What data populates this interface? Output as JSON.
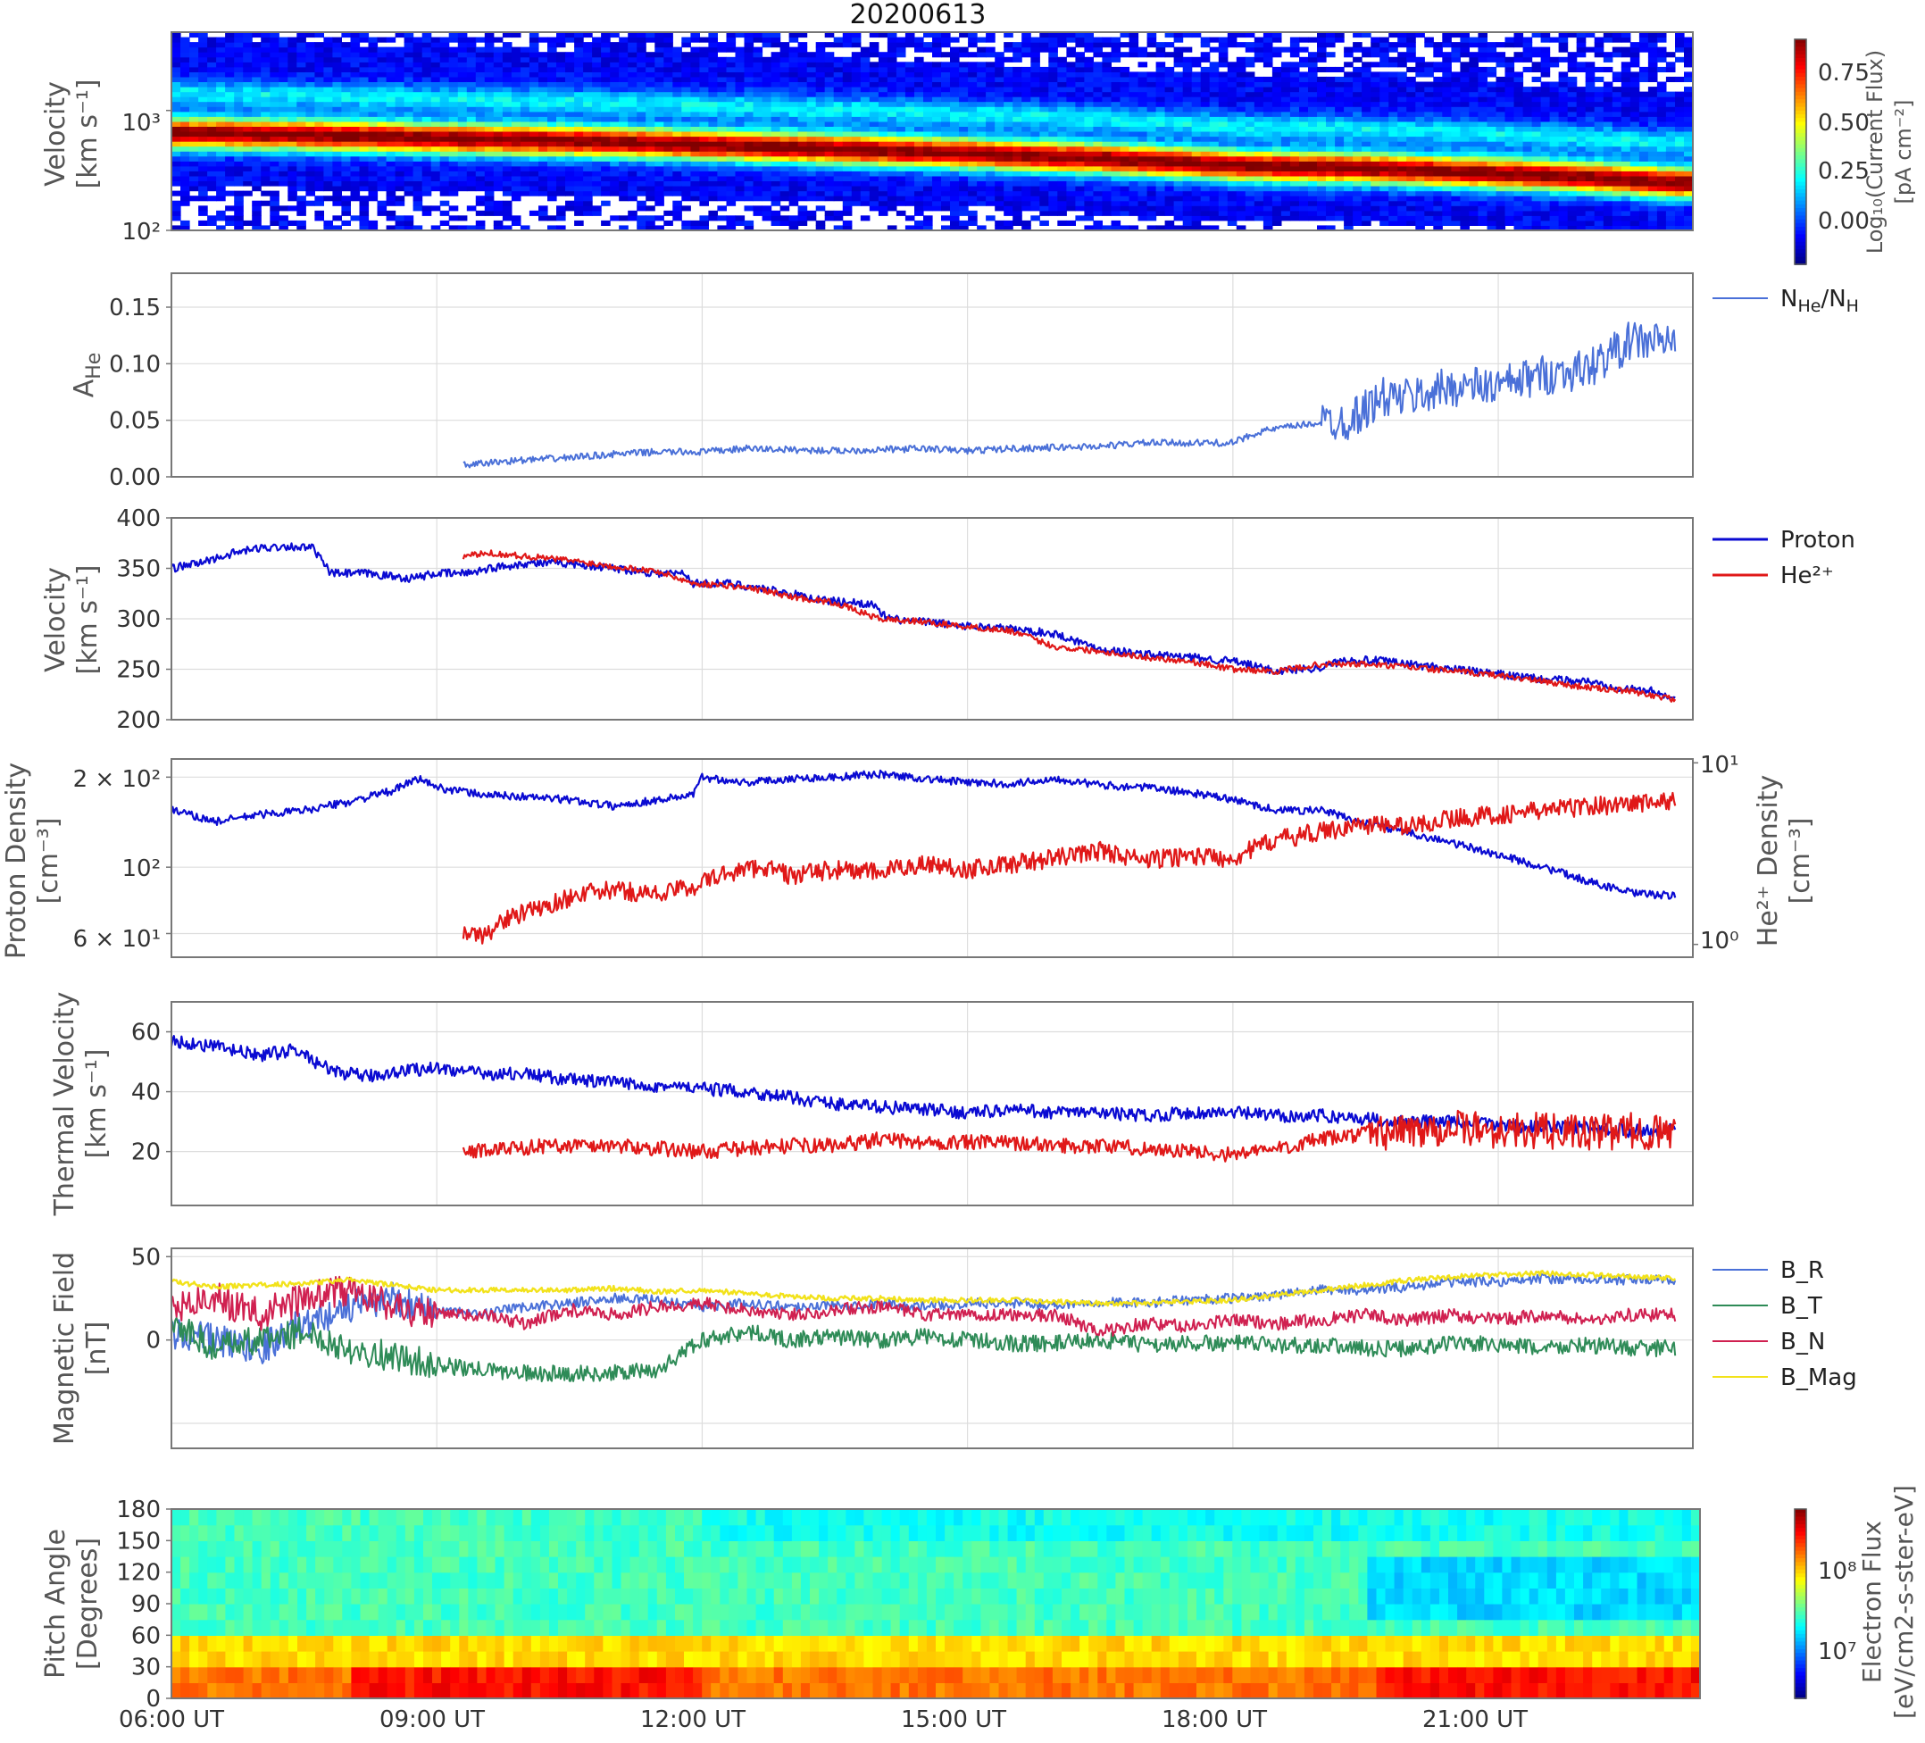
{
  "figure": {
    "title": "20200613",
    "x_tick_labels": [
      "06:00 UT",
      "09:00 UT",
      "12:00 UT",
      "15:00 UT",
      "18:00 UT",
      "21:00 UT"
    ]
  },
  "colors": {
    "proton": "#0a0ad2",
    "helium": "#e01818",
    "ahe": "#4a70d8",
    "b_r": "#4a70d8",
    "b_t": "#2e8b57",
    "b_n": "#d02050",
    "b_mag": "#f2e21a",
    "frame": "#777777",
    "grid": "#dddddd"
  },
  "chart_data": [
    {
      "type": "heatmap",
      "panel": "proton-spectrogram",
      "ylabel": "Velocity",
      "ylabel2": "[km s⁻¹]",
      "y_scale": "log",
      "ylim": [
        100,
        4500
      ],
      "y_tick_labels": [
        "10³",
        "10²"
      ],
      "colorbar": {
        "label": "Log₁₀(Current Flux)",
        "label2": "[pA cm⁻²]",
        "ticks": [
          "0.75",
          "0.50",
          "0.25",
          "0.00"
        ],
        "range": [
          -0.15,
          0.92
        ]
      },
      "peak_velocity": {
        "x_hours": [
          6,
          7.5,
          9,
          10.5,
          12,
          13.5,
          15,
          16.5,
          18,
          19.5,
          21,
          22,
          23
        ],
        "values": [
          650,
          630,
          590,
          560,
          520,
          480,
          440,
          400,
          350,
          330,
          300,
          280,
          250
        ]
      }
    },
    {
      "type": "line",
      "panel": "helium-abundance",
      "ylabel": "A",
      "ylabel_sub": "He",
      "ylim": [
        0,
        0.18
      ],
      "y_ticks": [
        0.0,
        0.05,
        0.1,
        0.15
      ],
      "y_tick_labels": [
        "0.00",
        "0.05",
        "0.10",
        "0.15"
      ],
      "series": [
        {
          "name": "N",
          "name_sub1": "He",
          "name_mid": "/N",
          "name_sub2": "H",
          "x_hours": [
            9.3,
            9.8,
            10.3,
            11,
            11.5,
            12,
            12.5,
            13,
            13.5,
            14,
            14.5,
            15,
            15.5,
            16,
            16.5,
            17,
            17.5,
            18,
            18.3,
            18.7,
            19,
            19.3,
            19.7,
            20,
            20.5,
            21,
            21.5,
            22,
            22.5,
            23
          ],
          "values": [
            0.01,
            0.014,
            0.016,
            0.02,
            0.022,
            0.022,
            0.025,
            0.024,
            0.023,
            0.024,
            0.025,
            0.023,
            0.025,
            0.026,
            0.027,
            0.03,
            0.03,
            0.03,
            0.04,
            0.045,
            0.048,
            0.05,
            0.07,
            0.07,
            0.08,
            0.08,
            0.09,
            0.095,
            0.12,
            0.12
          ]
        }
      ]
    },
    {
      "type": "line",
      "panel": "bulk-velocity",
      "ylabel": "Velocity",
      "ylabel2": "[km s⁻¹]",
      "ylim": [
        200,
        400
      ],
      "y_ticks": [
        200,
        250,
        300,
        350,
        400
      ],
      "series": [
        {
          "name": "Proton",
          "x_hours": [
            6,
            6.3,
            6.7,
            7,
            7.3,
            7.6,
            7.8,
            8.2,
            8.5,
            8.7,
            9,
            9.3,
            9.6,
            10,
            10.5,
            11,
            11.5,
            11.8,
            11.9,
            12.3,
            12.7,
            13,
            13.4,
            13.9,
            14.1,
            14.5,
            15,
            15.5,
            16,
            16.5,
            17,
            17.5,
            18,
            18.5,
            19,
            19.3,
            19.7,
            20,
            20.5,
            21,
            21.5,
            22,
            22.5,
            22.8,
            23
          ],
          "values": [
            350,
            355,
            365,
            370,
            372,
            370,
            345,
            345,
            342,
            340,
            345,
            345,
            350,
            355,
            355,
            350,
            345,
            345,
            335,
            335,
            330,
            325,
            318,
            315,
            300,
            297,
            293,
            290,
            285,
            270,
            265,
            262,
            258,
            248,
            252,
            260,
            258,
            255,
            250,
            245,
            240,
            238,
            230,
            228,
            220
          ]
        },
        {
          "name": "He²⁺",
          "x_hours": [
            9.3,
            9.6,
            10,
            10.5,
            11,
            11.5,
            11.9,
            12.3,
            12.7,
            13,
            13.5,
            14,
            14.5,
            15,
            15.5,
            16,
            16.5,
            17,
            17.5,
            18,
            18.5,
            19,
            19.5,
            20,
            20.5,
            21,
            21.5,
            22,
            22.5,
            23
          ],
          "values": [
            362,
            365,
            362,
            358,
            352,
            347,
            335,
            333,
            328,
            322,
            316,
            300,
            297,
            292,
            288,
            272,
            268,
            262,
            258,
            250,
            248,
            255,
            255,
            252,
            248,
            244,
            238,
            232,
            228,
            220
          ]
        }
      ]
    },
    {
      "type": "line",
      "panel": "density",
      "ylabel": "Proton Density",
      "ylabel2": "[cm⁻³]",
      "ylabel_right": "He²⁺ Density",
      "ylabel_right2": "[cm⁻³]",
      "y_scale": "log",
      "ylim": [
        50,
        230
      ],
      "y_tick_labels": [
        "2 × 10²",
        "10²",
        "6 × 10¹"
      ],
      "y2_scale": "log",
      "y2lim": [
        0.85,
        10.5
      ],
      "y2_tick_labels": [
        "10¹",
        "10⁰"
      ],
      "series": [
        {
          "name": "Proton",
          "axis": "left",
          "x_hours": [
            6,
            6.5,
            7,
            7.5,
            8,
            8.5,
            8.8,
            9,
            9.5,
            10,
            10.5,
            11,
            11.5,
            11.9,
            12,
            12.5,
            13,
            13.5,
            14,
            14.5,
            15,
            15.5,
            16,
            16.5,
            17,
            17.5,
            18,
            18.5,
            19,
            19.5,
            20,
            20.5,
            21,
            21.5,
            22,
            22.5,
            23
          ],
          "values": [
            155,
            142,
            150,
            155,
            165,
            180,
            198,
            185,
            175,
            172,
            168,
            160,
            168,
            175,
            200,
            192,
            198,
            200,
            205,
            198,
            192,
            190,
            198,
            188,
            185,
            178,
            168,
            155,
            155,
            140,
            130,
            120,
            110,
            100,
            90,
            82,
            80
          ]
        },
        {
          "name": "He²⁺",
          "axis": "right",
          "x_hours": [
            9.3,
            9.5,
            9.8,
            10.2,
            10.6,
            11,
            11.5,
            11.9,
            12.3,
            12.7,
            13,
            13.5,
            14,
            14.5,
            15,
            15.5,
            16,
            16.5,
            17,
            17.5,
            18,
            18.5,
            19,
            19.5,
            20,
            20.5,
            21,
            21.5,
            22,
            22.5,
            23
          ],
          "values": [
            1.2,
            1.1,
            1.4,
            1.6,
            1.9,
            2.0,
            1.9,
            2.1,
            2.5,
            2.7,
            2.4,
            2.6,
            2.5,
            2.8,
            2.6,
            2.8,
            3.0,
            3.3,
            2.9,
            3.1,
            3.0,
            3.8,
            4.2,
            4.6,
            4.5,
            5.0,
            5.2,
            5.5,
            5.8,
            6.0,
            6.2
          ]
        }
      ]
    },
    {
      "type": "line",
      "panel": "thermal-velocity",
      "ylabel": "Thermal Velocity",
      "ylabel2": "[km s⁻¹]",
      "ylim": [
        2,
        70
      ],
      "y_ticks": [
        20,
        40,
        60
      ],
      "series": [
        {
          "name": "Proton",
          "x_hours": [
            6,
            6.5,
            7,
            7.4,
            7.8,
            8.2,
            8.6,
            9,
            9.5,
            10,
            10.5,
            11,
            11.5,
            12,
            12.5,
            13,
            13.5,
            14,
            14.5,
            15,
            15.5,
            16,
            16.5,
            17,
            17.5,
            18,
            18.5,
            19,
            19.5,
            20,
            20.5,
            21,
            21.5,
            22,
            22.5,
            23
          ],
          "values": [
            57,
            55,
            52,
            54,
            47,
            45,
            47,
            48,
            46,
            46,
            44,
            43,
            42,
            41,
            40,
            38,
            36,
            35,
            34,
            33,
            34,
            33,
            33,
            32,
            33,
            33,
            32,
            32,
            31,
            30,
            30,
            29,
            28,
            28,
            27,
            27
          ]
        },
        {
          "name": "He²⁺",
          "x_hours": [
            9.3,
            9.8,
            10.3,
            11,
            11.5,
            12,
            12.5,
            13,
            13.5,
            14,
            14.5,
            15,
            15.5,
            16,
            16.5,
            17,
            17.5,
            18,
            18.5,
            19,
            19.5,
            20,
            20.5,
            21,
            21.5,
            22,
            22.5,
            23
          ],
          "values": [
            20,
            21,
            22,
            22,
            21,
            20,
            21,
            22,
            22,
            24,
            23,
            23,
            23,
            22,
            22,
            21,
            20,
            19,
            21,
            24,
            26,
            27,
            28,
            27,
            27,
            26,
            27,
            26
          ]
        }
      ]
    },
    {
      "type": "line",
      "panel": "magnetic-field",
      "ylabel": "Magnetic Field",
      "ylabel2": "[nT]",
      "ylim": [
        -65,
        55
      ],
      "y_ticks": [
        0,
        50
      ],
      "series": [
        {
          "name": "B_R",
          "x_hours": [
            6,
            6.5,
            7,
            7.5,
            8,
            8.5,
            9,
            9.5,
            10,
            10.5,
            11,
            11.5,
            12,
            12.5,
            13,
            13.5,
            14,
            14.5,
            15,
            15.5,
            16,
            16.5,
            17,
            17.5,
            18,
            18.5,
            19,
            19.5,
            20,
            20.5,
            21,
            21.5,
            22,
            22.5,
            23
          ],
          "values": [
            5,
            0,
            -5,
            10,
            20,
            25,
            18,
            15,
            20,
            22,
            25,
            24,
            20,
            22,
            20,
            21,
            22,
            20,
            22,
            22,
            21,
            23,
            22,
            24,
            25,
            27,
            30,
            30,
            32,
            35,
            35,
            37,
            36,
            36,
            36
          ]
        },
        {
          "name": "B_T",
          "x_hours": [
            6,
            6.5,
            7,
            7.5,
            8,
            8.5,
            9,
            9.5,
            10,
            10.5,
            11,
            11.5,
            12,
            12.5,
            13,
            13.5,
            14,
            14.5,
            15,
            15.5,
            16,
            16.5,
            17,
            17.5,
            18,
            18.5,
            19,
            19.5,
            20,
            20.5,
            21,
            21.5,
            22,
            22.5,
            23
          ],
          "values": [
            10,
            -5,
            0,
            5,
            -5,
            -10,
            -15,
            -18,
            -20,
            -20,
            -20,
            -18,
            0,
            5,
            0,
            2,
            0,
            2,
            0,
            -2,
            -2,
            0,
            -3,
            -2,
            -2,
            -3,
            -3,
            -5,
            -5,
            -2,
            -3,
            -5,
            -3,
            -5,
            -5
          ]
        },
        {
          "name": "B_N",
          "x_hours": [
            6,
            6.5,
            7,
            7.5,
            8,
            8.5,
            9,
            9.5,
            10,
            10.5,
            11,
            11.5,
            12,
            12.5,
            13,
            13.5,
            14,
            14.5,
            15,
            15.5,
            16,
            16.5,
            17,
            17.5,
            18,
            18.5,
            19,
            19.5,
            20,
            20.5,
            21,
            21.5,
            22,
            22.5,
            23
          ],
          "values": [
            20,
            25,
            15,
            25,
            30,
            20,
            15,
            15,
            10,
            18,
            15,
            20,
            22,
            18,
            15,
            18,
            20,
            15,
            15,
            15,
            15,
            5,
            10,
            8,
            12,
            10,
            12,
            15,
            12,
            15,
            12,
            15,
            12,
            15,
            15
          ]
        },
        {
          "name": "B_Mag",
          "x_hours": [
            6,
            6.5,
            7,
            7.5,
            8,
            8.5,
            9,
            9.5,
            10,
            10.5,
            11,
            11.5,
            12,
            12.5,
            13,
            13.5,
            14,
            14.5,
            15,
            15.5,
            16,
            16.5,
            17,
            17.5,
            18,
            18.5,
            19,
            19.5,
            20,
            20.5,
            21,
            21.5,
            22,
            22.5,
            23
          ],
          "values": [
            35,
            32,
            33,
            34,
            36,
            33,
            30,
            30,
            30,
            30,
            31,
            29,
            30,
            28,
            26,
            25,
            25,
            24,
            24,
            24,
            23,
            22,
            22,
            23,
            24,
            27,
            30,
            33,
            36,
            38,
            39,
            40,
            39,
            38,
            37
          ]
        }
      ]
    },
    {
      "type": "heatmap",
      "panel": "pitch-angle",
      "ylabel": "Pitch Angle",
      "ylabel2": "[Degrees]",
      "ylim": [
        0,
        180
      ],
      "y_ticks": [
        0,
        30,
        60,
        90,
        120,
        150,
        180
      ],
      "colorbar": {
        "label": "Electron Flux",
        "label2": "[eV/cm2-s-ster-eV]",
        "scale": "log",
        "ticks": [
          "10⁸",
          "10⁷"
        ]
      }
    }
  ]
}
